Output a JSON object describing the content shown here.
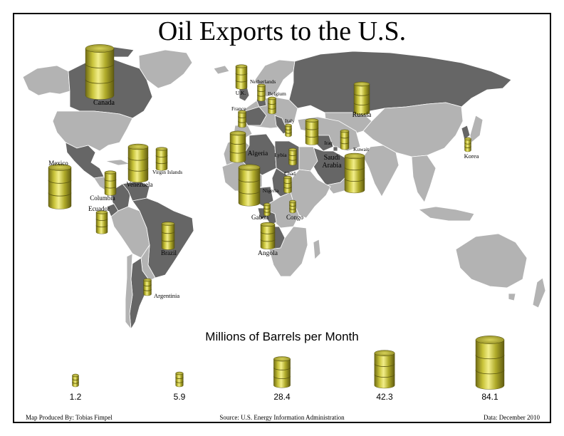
{
  "title": "Oil Exports to the U.S.",
  "legend": {
    "title": "Millions of Barrels per Month",
    "sizes": [
      {
        "label": "1.2",
        "value": 1.2
      },
      {
        "label": "5.9",
        "value": 5.9
      },
      {
        "label": "28.4",
        "value": 28.4
      },
      {
        "label": "42.3",
        "value": 42.3
      },
      {
        "label": "84.1",
        "value": 84.1
      }
    ]
  },
  "countries": [
    {
      "name": "Canada",
      "label": "Canada"
    },
    {
      "name": "Mexico",
      "label": "Mexico"
    },
    {
      "name": "Venezuela",
      "label": "Venezuela"
    },
    {
      "name": "Virgin Islands",
      "label": "Virgin Islands"
    },
    {
      "name": "Columbia",
      "label": "Columbia"
    },
    {
      "name": "Ecuador",
      "label": "Ecuador"
    },
    {
      "name": "Brazil",
      "label": "Brazil"
    },
    {
      "name": "Argentinia",
      "label": "Argentinia"
    },
    {
      "name": "U.K.",
      "label": "U.K."
    },
    {
      "name": "Netherlands",
      "label": "Netherlands"
    },
    {
      "name": "Belgium",
      "label": "Belgium"
    },
    {
      "name": "France",
      "label": "France"
    },
    {
      "name": "Italy",
      "label": "Italy"
    },
    {
      "name": "Russia",
      "label": "Russia"
    },
    {
      "name": "Algeria",
      "label": "Algeria"
    },
    {
      "name": "Lybia",
      "label": "Lybia"
    },
    {
      "name": "Iraq",
      "label": "Iraq"
    },
    {
      "name": "Saudi Arabia",
      "label": "Saudi Arabia"
    },
    {
      "name": "Kuwait",
      "label": "Kuwait"
    },
    {
      "name": "Chad",
      "label": "Chad"
    },
    {
      "name": "Nigeria",
      "label": "Nigeria"
    },
    {
      "name": "Gabon",
      "label": "Gabon"
    },
    {
      "name": "Congo",
      "label": "Congo"
    },
    {
      "name": "Angola",
      "label": "Angola"
    },
    {
      "name": "Korea",
      "label": "Korea"
    }
  ],
  "footer": {
    "credit": "Map Produced By: Tobias Fimpel",
    "source": "Source: U.S. Energy Information Administration",
    "date": "Data: December 2010"
  },
  "colors": {
    "exporter": "#666666",
    "other_land": "#b3b3b3",
    "barrel": "#b5b02e",
    "border": "#ffffff"
  }
}
